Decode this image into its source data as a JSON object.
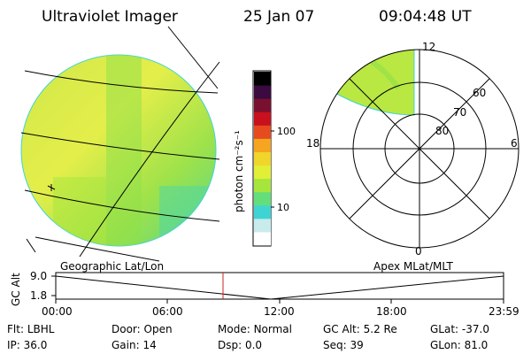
{
  "header": {
    "instrument": "Ultraviolet Imager",
    "date": "25 Jan 07",
    "time": "09:04:48 UT"
  },
  "colorbar": {
    "label": "photon cm⁻²s⁻¹",
    "tick_100": "100",
    "tick_10": "10",
    "colors": [
      "#ffffff",
      "#c8ecec",
      "#3fd4d4",
      "#64de7a",
      "#a6e63c",
      "#e2ef37",
      "#f0d52a",
      "#f5a51f",
      "#e64a1f",
      "#c8101f",
      "#7a1030",
      "#3a0a40",
      "#000000"
    ]
  },
  "polar_plot": {
    "lat_labels": [
      "60",
      "70",
      "80"
    ],
    "mlt_labels": [
      "12",
      "18",
      "6",
      "0"
    ]
  },
  "timeline": {
    "left_title": "Geographic Lat/Lon",
    "right_title": "Apex MLat/MLT",
    "y_axis_label": "GC Alt",
    "y_ticks": [
      "9.0",
      "1.8"
    ],
    "x_ticks": [
      "00:00",
      "06:00",
      "12:00",
      "18:00",
      "23:59"
    ],
    "current_time_marker": "09:04:48",
    "marker_color": "#cc2222"
  },
  "footer": {
    "row1": [
      {
        "key": "Flt:",
        "value": "LBHL"
      },
      {
        "key": "Door:",
        "value": "Open"
      },
      {
        "key": "Mode:",
        "value": "Normal"
      },
      {
        "key": "GC Alt:",
        "value": "5.2 Re"
      },
      {
        "key": "GLat:",
        "value": "-37.0"
      }
    ],
    "row2": [
      {
        "key": "IP:",
        "value": "36.0"
      },
      {
        "key": "Gain:",
        "value": "14"
      },
      {
        "key": "Dsp:",
        "value": "0.0"
      },
      {
        "key": "Seq:",
        "value": "39"
      },
      {
        "key": "GLon:",
        "value": "81.0"
      }
    ]
  }
}
